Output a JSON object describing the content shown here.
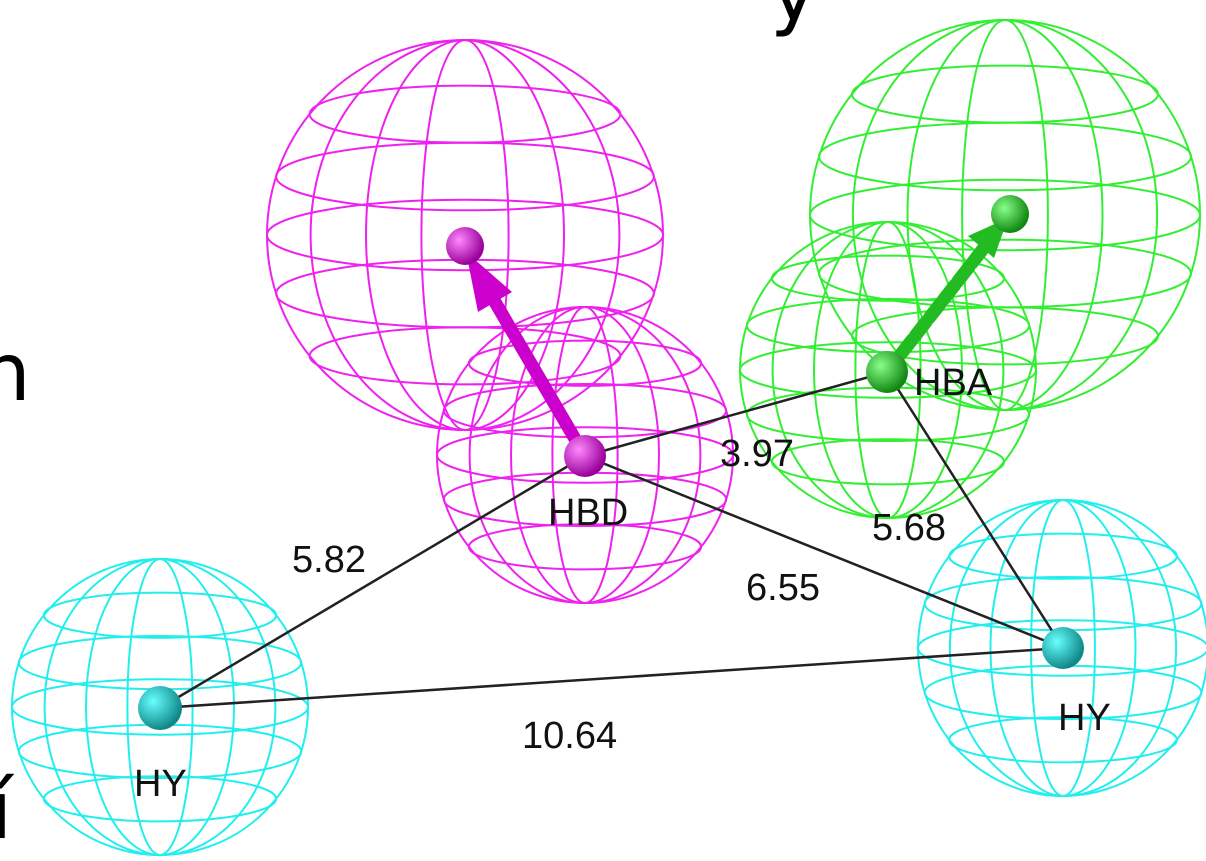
{
  "colors": {
    "hbd": "#ee22ee",
    "hbd_atom": "#b000b0",
    "hba": "#33ee33",
    "hba_atom": "#11aa11",
    "hy": "#22eeee",
    "hy_atom": "#119999",
    "bond": "#222222"
  },
  "features": {
    "hbd": "HBD",
    "hba": "HBA",
    "hy_left": "HY",
    "hy_right": "HY"
  },
  "distances": {
    "hbd_hba": "3.97",
    "hba_hy_right": "5.68",
    "hbd_hy_left": "5.82",
    "hbd_hy_right": "6.55",
    "hy_left_hy_right": "10.64"
  },
  "edge_fragments": {
    "top": "y",
    "left_middle": "n",
    "left_bottom": "í"
  }
}
